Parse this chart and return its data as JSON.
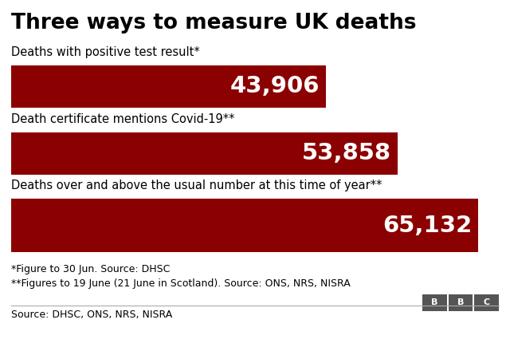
{
  "title": "Three ways to measure UK deaths",
  "title_fontsize": 19,
  "title_fontweight": "bold",
  "bar_color": "#8B0000",
  "text_color_white": "#FFFFFF",
  "text_color_black": "#000000",
  "background_color": "#FFFFFF",
  "bars": [
    {
      "label": "Deaths with positive test result*",
      "value": 43906,
      "display": "43,906"
    },
    {
      "label": "Death certificate mentions Covid-19**",
      "value": 53858,
      "display": "53,858"
    },
    {
      "label": "Deaths over and above the usual number at this time of year**",
      "value": 65132,
      "display": "65,132"
    }
  ],
  "max_value": 68000,
  "footnote1": "*Figure to 30 Jun. Source: DHSC",
  "footnote2": "**Figures to 19 June (21 June in Scotland). Source: ONS, NRS, NISRA",
  "source": "Source: DHSC, ONS, NRS, NISRA",
  "bbc_logo": "BBC",
  "value_fontsize": 21,
  "label_fontsize": 10.5,
  "footnote_fontsize": 9,
  "source_fontsize": 9
}
